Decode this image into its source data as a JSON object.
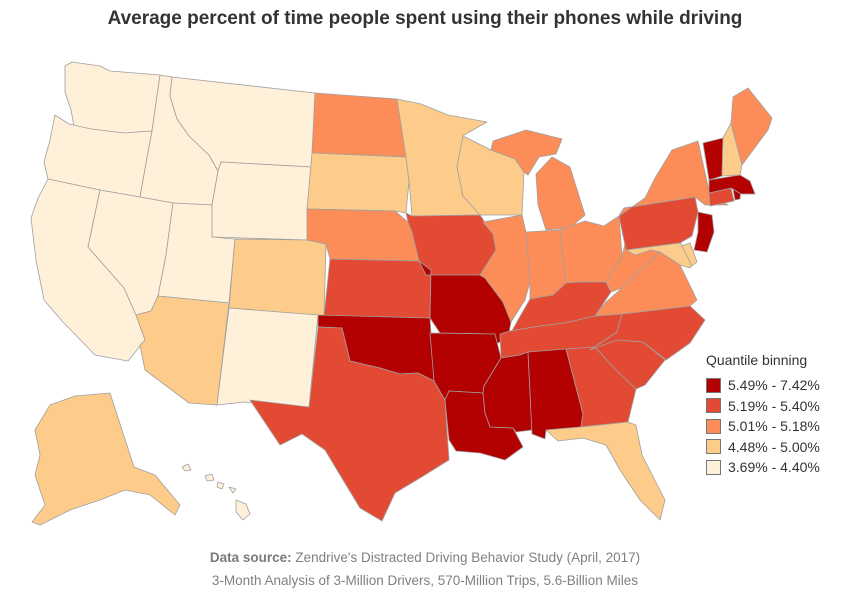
{
  "title": "Average percent of time people spent using their phones while driving",
  "legend": {
    "title": "Quantile binning",
    "bins": [
      {
        "label": "5.49% - 7.42%",
        "color": "#b30000"
      },
      {
        "label": "5.19% - 5.40%",
        "color": "#e34a33"
      },
      {
        "label": "5.01% - 5.18%",
        "color": "#fc8d59"
      },
      {
        "label": "4.48% - 5.00%",
        "color": "#fdcc8a"
      },
      {
        "label": "3.69% - 4.40%",
        "color": "#fef0d9"
      }
    ]
  },
  "footer": {
    "source_label": "Data source:",
    "source_text": "Zendrive's Distracted Driving Behavior Study (April, 2017)",
    "line2": "3-Month Analysis of 3-Million Drivers, 570-Million Trips, 5.6-Billion Miles"
  },
  "map_data": {
    "type": "choropleth",
    "states": [
      {
        "id": "WA",
        "bin": 4
      },
      {
        "id": "OR",
        "bin": 4
      },
      {
        "id": "CA",
        "bin": 4
      },
      {
        "id": "ID",
        "bin": 4
      },
      {
        "id": "NV",
        "bin": 4
      },
      {
        "id": "MT",
        "bin": 4
      },
      {
        "id": "WY",
        "bin": 4
      },
      {
        "id": "UT",
        "bin": 4
      },
      {
        "id": "NM",
        "bin": 4
      },
      {
        "id": "HI",
        "bin": 4
      },
      {
        "id": "AZ",
        "bin": 3
      },
      {
        "id": "CO",
        "bin": 3
      },
      {
        "id": "SD",
        "bin": 3
      },
      {
        "id": "MN",
        "bin": 3
      },
      {
        "id": "WI",
        "bin": 3
      },
      {
        "id": "FL",
        "bin": 3
      },
      {
        "id": "NH",
        "bin": 3
      },
      {
        "id": "AK",
        "bin": 3
      },
      {
        "id": "MD",
        "bin": 3
      },
      {
        "id": "DE",
        "bin": 3
      },
      {
        "id": "ND",
        "bin": 2
      },
      {
        "id": "NE",
        "bin": 2
      },
      {
        "id": "IL",
        "bin": 2
      },
      {
        "id": "IN",
        "bin": 2
      },
      {
        "id": "MI",
        "bin": 2
      },
      {
        "id": "OH",
        "bin": 2
      },
      {
        "id": "NY",
        "bin": 2
      },
      {
        "id": "WV",
        "bin": 2
      },
      {
        "id": "VA",
        "bin": 2
      },
      {
        "id": "ME",
        "bin": 2
      },
      {
        "id": "TX",
        "bin": 1
      },
      {
        "id": "KS",
        "bin": 1
      },
      {
        "id": "IA",
        "bin": 1
      },
      {
        "id": "KY",
        "bin": 1
      },
      {
        "id": "TN",
        "bin": 1
      },
      {
        "id": "NC",
        "bin": 1
      },
      {
        "id": "SC",
        "bin": 1
      },
      {
        "id": "GA",
        "bin": 1
      },
      {
        "id": "PA",
        "bin": 1
      },
      {
        "id": "CT",
        "bin": 1
      },
      {
        "id": "MO",
        "bin": 0
      },
      {
        "id": "OK",
        "bin": 0
      },
      {
        "id": "AR",
        "bin": 0
      },
      {
        "id": "LA",
        "bin": 0
      },
      {
        "id": "MS",
        "bin": 0
      },
      {
        "id": "AL",
        "bin": 0
      },
      {
        "id": "VT",
        "bin": 0
      },
      {
        "id": "MA",
        "bin": 0
      },
      {
        "id": "NJ",
        "bin": 0
      },
      {
        "id": "RI",
        "bin": 0
      }
    ]
  }
}
